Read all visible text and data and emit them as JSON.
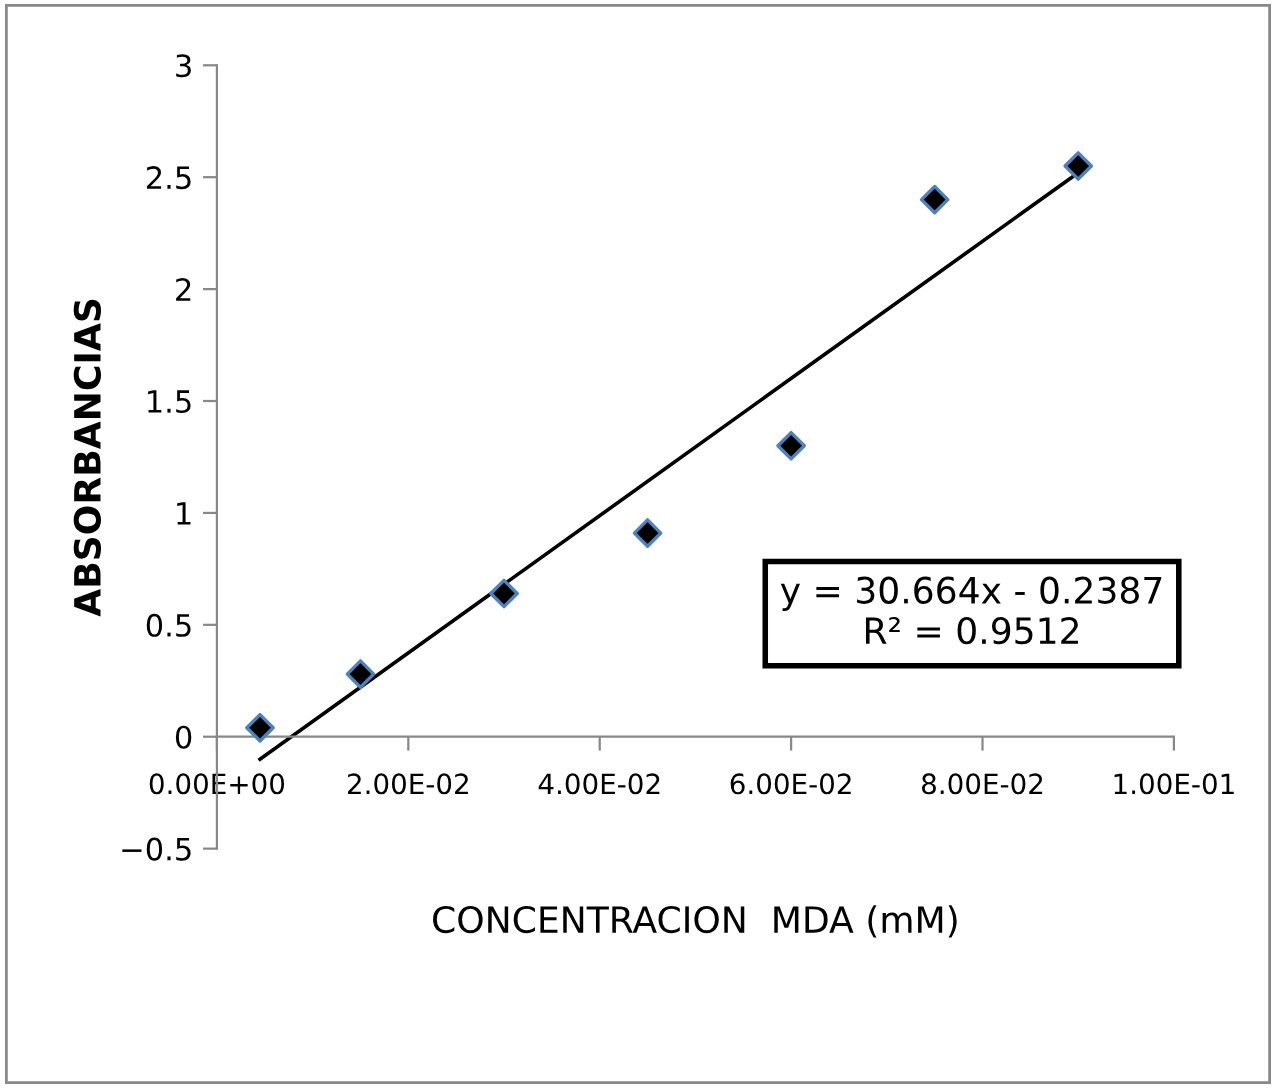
{
  "chart_data": {
    "type": "scatter",
    "xlabel": "CONCENTRACION  MDA (mM)",
    "ylabel": "ABSORBANCIAS",
    "grid": false,
    "legend": false,
    "series": [
      {
        "marker": "diamond",
        "color": "#000000",
        "x": [
          0.0045,
          0.015,
          0.03,
          0.045,
          0.06,
          0.075,
          0.09
        ],
        "values": [
          0.04,
          0.28,
          0.64,
          0.91,
          1.3,
          2.4,
          2.55
        ]
      },
      {
        "type": "line",
        "marker": "none",
        "color": "#000000",
        "x": [
          0.0045,
          0.09
        ],
        "values": [
          -0.1,
          2.52
        ]
      }
    ],
    "annotations": [
      "y = 30.664x - 0.2387\nR² = 0.9512"
    ],
    "xlim": [
      0,
      0.1
    ],
    "xticks": [
      {
        "value": 0,
        "label": "0.00E+00"
      },
      {
        "value": 0.02,
        "label": "2.00E-02"
      },
      {
        "value": 0.04,
        "label": "4.00E-02"
      },
      {
        "value": 0.06,
        "label": "6.00E-02"
      },
      {
        "value": 0.08,
        "label": "8.00E-02"
      },
      {
        "value": 0.1,
        "label": "1.00E-01"
      }
    ],
    "ylim": [
      -0.5,
      3
    ],
    "yticks": [
      {
        "value": -0.5,
        "label": "−0.5"
      },
      0,
      0.5,
      1,
      1.5,
      2,
      2.5,
      3
    ]
  }
}
